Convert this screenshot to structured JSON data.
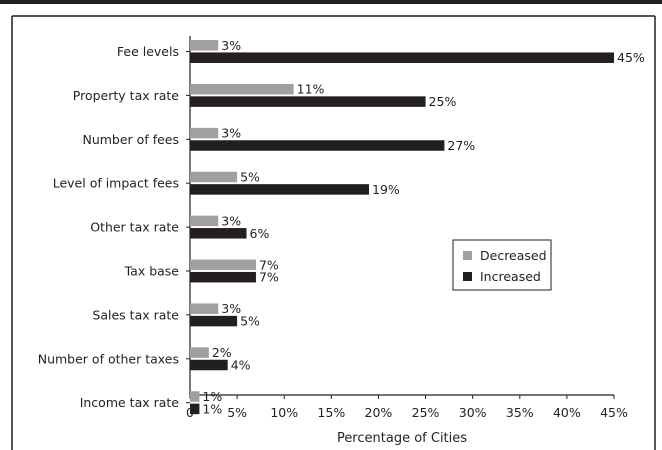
{
  "chart_data": {
    "type": "bar",
    "orientation": "horizontal",
    "categories": [
      "Fee levels",
      "Property tax rate",
      "Number of fees",
      "Level of impact fees",
      "Other tax rate",
      "Tax base",
      "Sales tax rate",
      "Number of other taxes",
      "Income tax rate"
    ],
    "series": [
      {
        "name": "Decreased",
        "color": "#a0a0a0",
        "values": [
          3,
          11,
          3,
          5,
          3,
          7,
          3,
          2,
          1
        ],
        "labels": [
          "3%",
          "11%",
          "3%",
          "5%",
          "3%",
          "7%",
          "3%",
          "2%",
          "1%"
        ]
      },
      {
        "name": "Increased",
        "color": "#231f20",
        "values": [
          45,
          25,
          27,
          19,
          6,
          7,
          5,
          4,
          1
        ],
        "labels": [
          "45%",
          "25%",
          "27%",
          "19%",
          "6%",
          "7%",
          "5%",
          "4%",
          "1%"
        ]
      }
    ],
    "xlim": [
      0,
      45
    ],
    "xticks": [
      0,
      5,
      10,
      15,
      20,
      25,
      30,
      35,
      40,
      45
    ],
    "xtick_labels": [
      "0",
      "5%",
      "10%",
      "15%",
      "20%",
      "25%",
      "30%",
      "35%",
      "40%",
      "45%"
    ],
    "xlabel": "Percentage of Cities",
    "legend": {
      "placement": "center-right",
      "entries": [
        "Decreased",
        "Increased"
      ]
    },
    "grid": false
  }
}
